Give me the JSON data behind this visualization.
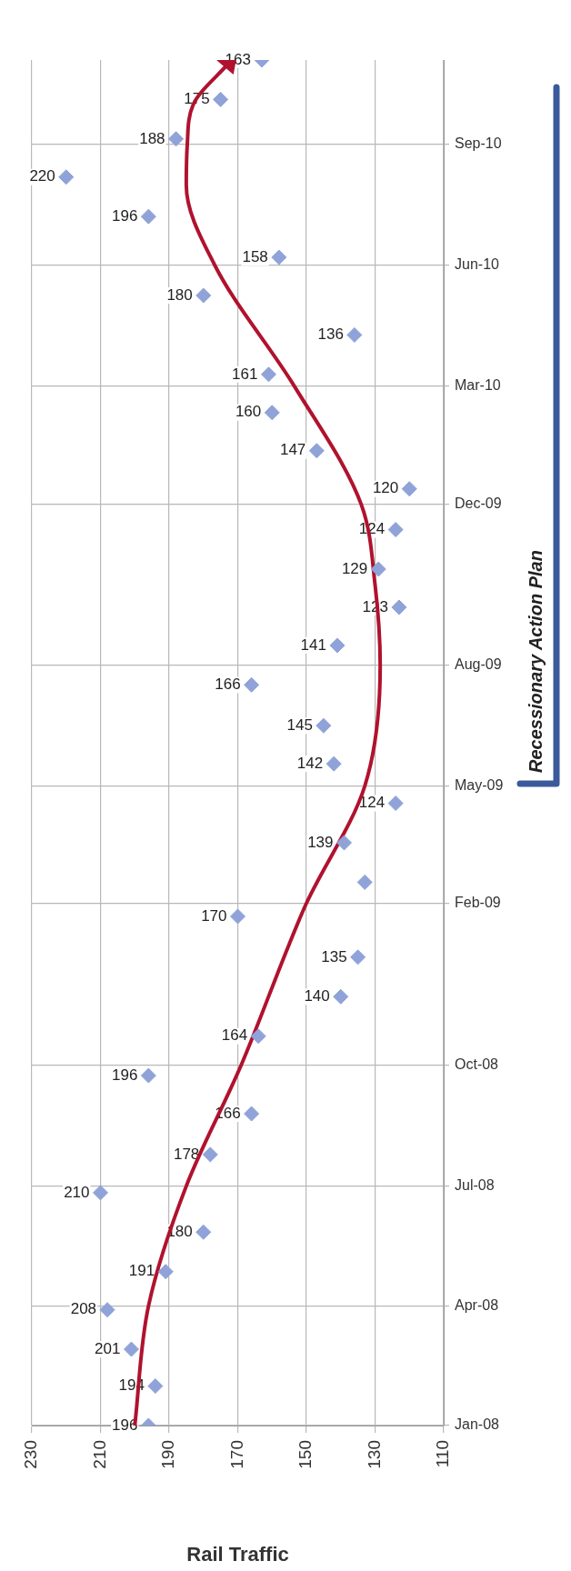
{
  "chart_data": {
    "type": "scatter",
    "orientation": "horizontal",
    "xlabel": "Rail Traffic",
    "ylim": [
      "2008-01-01",
      "2010-11-04"
    ],
    "yticks": [
      {
        "value": "2008-01-01",
        "label": "Jan-08"
      },
      {
        "value": "2008-04-01",
        "label": "Apr-08"
      },
      {
        "value": "2008-07-01",
        "label": "Jul-08"
      },
      {
        "value": "2008-10-01",
        "label": "Oct-08"
      },
      {
        "value": "2009-02-01",
        "label": "Feb-09"
      },
      {
        "value": "2009-05-01",
        "label": "May-09"
      },
      {
        "value": "2009-08-01",
        "label": "Aug-09"
      },
      {
        "value": "2009-12-01",
        "label": "Dec-09"
      },
      {
        "value": "2010-03-01",
        "label": "Mar-10"
      },
      {
        "value": "2010-06-01",
        "label": "Jun-10"
      },
      {
        "value": "2010-09-01",
        "label": "Sep-10"
      }
    ],
    "xlim": [
      230,
      110
    ],
    "xticks": [
      230,
      210,
      190,
      170,
      150,
      130,
      110
    ],
    "grid": true,
    "legend": false,
    "annotations": [
      "Recessionary Action Plan"
    ],
    "series": [
      {
        "color": "#8fa3d8",
        "marker": "diamond",
        "x": [
          "2008-01-01",
          "2008-01-31",
          "2008-02-28",
          "2008-03-29",
          "2008-04-27",
          "2008-05-27",
          "2008-06-26",
          "2008-07-25",
          "2008-08-25",
          "2008-09-23",
          "2008-10-23",
          "2008-11-22",
          "2008-12-22",
          "2009-01-22",
          "2009-02-17",
          "2009-03-19",
          "2009-04-18",
          "2009-05-18",
          "2009-06-16",
          "2009-07-17",
          "2009-08-16",
          "2009-09-14",
          "2009-10-13",
          "2009-11-12",
          "2009-12-13",
          "2010-01-11",
          "2010-02-09",
          "2010-03-10",
          "2010-04-09",
          "2010-05-09",
          "2010-06-07",
          "2010-07-08",
          "2010-08-07",
          "2010-09-05",
          "2010-10-05",
          "2010-11-04"
        ],
        "values": [
          196,
          194,
          201,
          208,
          191,
          180,
          210,
          178,
          166,
          196,
          164,
          140,
          135,
          170,
          133,
          139,
          124,
          142,
          145,
          166,
          141,
          123,
          129,
          124,
          120,
          147,
          160,
          161,
          136,
          180,
          158,
          196,
          220,
          188,
          175,
          163
        ],
        "value_labels": [
          "196",
          "194",
          "201",
          "208",
          "191",
          "180",
          "210",
          "178",
          "166",
          "196",
          "164",
          "140",
          "135",
          "170",
          null,
          "139",
          "124",
          "142",
          "145",
          "166",
          "141",
          "123",
          "129",
          "124",
          "120",
          "147",
          "160",
          "161",
          "136",
          "180",
          "158",
          "196",
          "220",
          "188",
          "175",
          "163"
        ]
      },
      {
        "type": "line",
        "color": "#b0122e",
        "marker": "none",
        "line_style": "solid",
        "x": [
          "2008-01-01",
          "2008-04-01",
          "2008-07-01",
          "2008-10-01",
          "2009-01-01",
          "2009-02-01",
          "2009-05-01",
          "2009-08-01",
          "2009-10-01",
          "2009-12-01",
          "2010-03-01",
          "2010-06-01",
          "2010-08-01",
          "2010-09-01",
          "2010-10-01",
          "2010-11-02"
        ],
        "values": [
          200,
          196,
          185,
          169,
          155,
          150,
          133,
          128.5,
          130,
          134,
          153.5,
          176.7,
          185,
          184.7,
          183,
          172.5
        ]
      }
    ]
  }
}
